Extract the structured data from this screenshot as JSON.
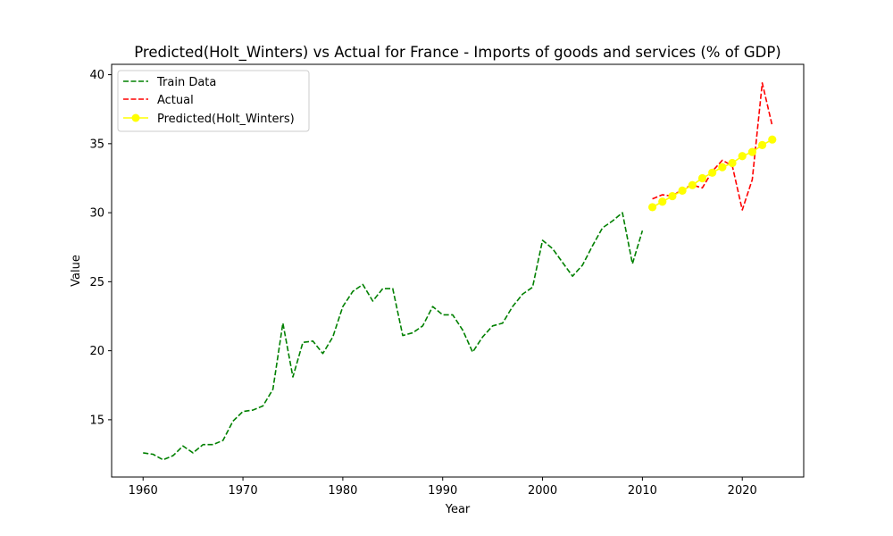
{
  "chart_data": {
    "type": "line",
    "title": "Predicted(Holt_Winters) vs Actual for France - Imports of goods and services (% of GDP)",
    "xlabel": "Year",
    "ylabel": "Value",
    "xlim": [
      1956.85,
      2026.15
    ],
    "ylim": [
      10.85,
      40.75
    ],
    "xticks": [
      1960,
      1970,
      1980,
      1990,
      2000,
      2010,
      2020
    ],
    "yticks": [
      15,
      20,
      25,
      30,
      35,
      40
    ],
    "grid": false,
    "legend_position": "top-left",
    "series": [
      {
        "name": "Train Data",
        "color": "#008000",
        "style": "dashed",
        "x": [
          1960,
          1961,
          1962,
          1963,
          1964,
          1965,
          1966,
          1967,
          1968,
          1969,
          1970,
          1971,
          1972,
          1973,
          1974,
          1975,
          1976,
          1977,
          1978,
          1979,
          1980,
          1981,
          1982,
          1983,
          1984,
          1985,
          1986,
          1987,
          1988,
          1989,
          1990,
          1991,
          1992,
          1993,
          1994,
          1995,
          1996,
          1997,
          1998,
          1999,
          2000,
          2001,
          2002,
          2003,
          2004,
          2005,
          2006,
          2007,
          2008,
          2009,
          2010
        ],
        "y": [
          12.6,
          12.5,
          12.1,
          12.4,
          13.1,
          12.6,
          13.2,
          13.2,
          13.5,
          14.9,
          15.6,
          15.7,
          16.0,
          17.2,
          22.0,
          18.1,
          20.6,
          20.7,
          19.8,
          21.0,
          23.2,
          24.3,
          24.8,
          23.6,
          24.5,
          24.5,
          21.1,
          21.3,
          21.8,
          23.2,
          22.6,
          22.6,
          21.5,
          19.9,
          21.0,
          21.8,
          22.0,
          23.2,
          24.1,
          24.6,
          28.0,
          27.4,
          26.4,
          25.4,
          26.2,
          27.6,
          28.9,
          29.4,
          30.0,
          26.3,
          28.7
        ]
      },
      {
        "name": "Actual",
        "color": "#ff0000",
        "style": "dashed",
        "x": [
          2011,
          2012,
          2013,
          2014,
          2015,
          2016,
          2017,
          2018,
          2019,
          2020,
          2021,
          2022,
          2023
        ],
        "y": [
          31.0,
          31.3,
          31.2,
          31.7,
          32.0,
          31.8,
          33.0,
          33.8,
          33.4,
          30.2,
          32.4,
          39.4,
          36.3
        ]
      },
      {
        "name": "Predicted(Holt_Winters)",
        "color": "#ffff00",
        "style": "solid-markers",
        "x": [
          2011,
          2012,
          2013,
          2014,
          2015,
          2016,
          2017,
          2018,
          2019,
          2020,
          2021,
          2022,
          2023
        ],
        "y": [
          30.4,
          30.8,
          31.2,
          31.6,
          32.0,
          32.5,
          32.9,
          33.3,
          33.6,
          34.1,
          34.4,
          34.9,
          35.3
        ]
      }
    ]
  }
}
